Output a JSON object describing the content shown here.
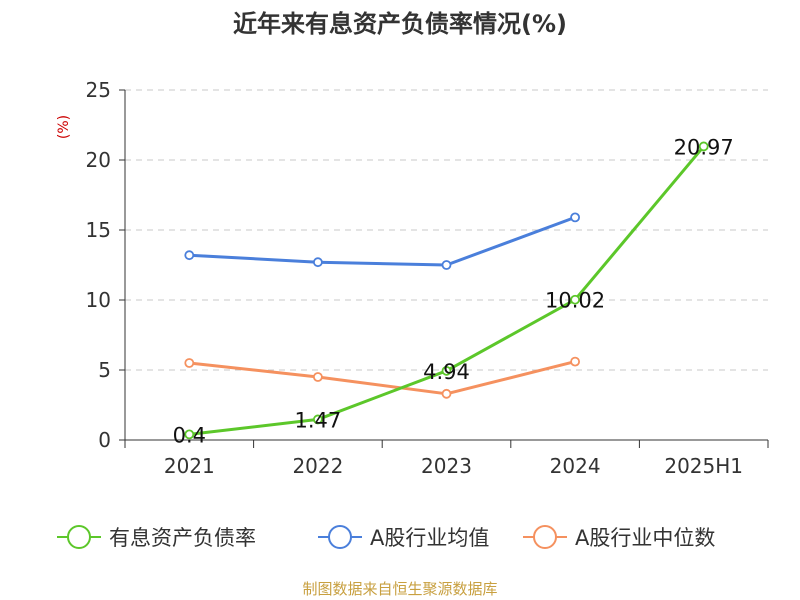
{
  "chart_data": {
    "type": "line",
    "title": "近年来有息资产负债率情况(%)",
    "unit_label": "(%)",
    "categories": [
      "2021",
      "2022",
      "2023",
      "2024",
      "2025H1"
    ],
    "ylim": [
      0,
      25
    ],
    "yticks": [
      0,
      5,
      10,
      15,
      20,
      25
    ],
    "grid": true,
    "legend_position": "bottom",
    "series": [
      {
        "name": "有息资产负债率",
        "color": "#5cc72a",
        "values": [
          0.4,
          1.47,
          4.94,
          10.02,
          20.97
        ],
        "labels": [
          "0.4",
          "1.47",
          "4.94",
          "10.02",
          "20.97"
        ]
      },
      {
        "name": "A股行业均值",
        "color": "#4a7fdb",
        "values": [
          13.2,
          12.7,
          12.5,
          15.9,
          null
        ]
      },
      {
        "name": "A股行业中位数",
        "color": "#f5915f",
        "values": [
          5.5,
          4.5,
          3.3,
          5.6,
          null
        ]
      }
    ],
    "source": "制图数据来自恒生聚源数据库"
  }
}
